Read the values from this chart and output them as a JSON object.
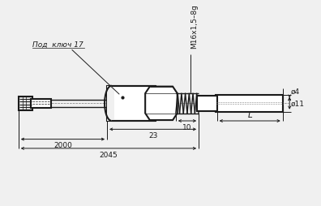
{
  "bg_color": "#f0f0f0",
  "line_color": "#1a1a1a",
  "lw": 1.0,
  "tlw": 1.5,
  "dlw": 0.7,
  "fs": 6.5,
  "annotations": {
    "pod_kluch": "Под  ключ 17",
    "thread": "М16х1,5–8g",
    "diam4": "ø4",
    "diam11": "ø11",
    "dim10": "10",
    "dim23": "23",
    "dim2000": "2000",
    "dim2045": "2045",
    "dimL": "L"
  },
  "cx_positions": {
    "cable_l": 12,
    "cable_r": 30,
    "plug_l": 28,
    "plug_r": 55,
    "wire_l": 55,
    "wire_r": 130,
    "body_l": 128,
    "body_r": 192,
    "nut_l": 178,
    "nut_r": 220,
    "spring_l": 218,
    "spring_r": 248,
    "sleeve_l": 246,
    "sleeve_r": 272,
    "rod_l": 270,
    "rod_r": 358
  }
}
